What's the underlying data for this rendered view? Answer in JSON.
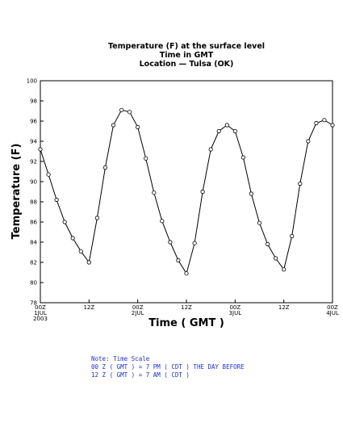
{
  "chart_data": {
    "type": "line",
    "title": [
      "Temperature (F) at the surface level",
      "Time in GMT",
      "Location — Tulsa (OK)"
    ],
    "xlabel": "Time ( GMT )",
    "ylabel": "Temperature (F)",
    "ylim": [
      78,
      100
    ],
    "yticks": [
      78,
      80,
      82,
      84,
      86,
      88,
      90,
      92,
      94,
      96,
      98,
      100
    ],
    "xlim_hours": [
      0,
      72
    ],
    "xticks": [
      {
        "hour": 0,
        "lines": [
          "00Z",
          "1JUL",
          "2003"
        ]
      },
      {
        "hour": 12,
        "lines": [
          "12Z"
        ]
      },
      {
        "hour": 24,
        "lines": [
          "00Z",
          "2JUL"
        ]
      },
      {
        "hour": 36,
        "lines": [
          "12Z"
        ]
      },
      {
        "hour": 48,
        "lines": [
          "00Z",
          "3JUL"
        ]
      },
      {
        "hour": 60,
        "lines": [
          "12Z"
        ]
      },
      {
        "hour": 72,
        "lines": [
          "00Z",
          "4JUL"
        ]
      }
    ],
    "series": [
      {
        "x_hours": [
          0,
          2,
          4,
          6,
          8,
          10,
          12,
          14,
          16,
          18,
          20,
          22,
          24,
          26,
          28,
          30,
          32,
          34,
          36,
          38,
          40,
          42,
          44,
          46,
          48,
          50,
          52,
          54,
          56,
          58,
          60,
          62,
          64,
          66,
          68,
          70,
          72
        ],
        "values": [
          93.2,
          90.7,
          88.2,
          86.0,
          84.4,
          83.1,
          82.0,
          86.4,
          91.4,
          95.6,
          97.1,
          96.9,
          95.4,
          92.3,
          88.9,
          86.1,
          84.0,
          82.2,
          80.9,
          83.9,
          89.0,
          93.2,
          95.0,
          95.6,
          95.0,
          92.4,
          88.8,
          85.9,
          83.8,
          82.4,
          81.3,
          84.6,
          89.8,
          94.0,
          95.8,
          96.1,
          95.6
        ]
      }
    ]
  },
  "note": {
    "lines": [
      "Note: Time Scale",
      "00 Z ( GMT ) = 7 PM ( CDT ) THE DAY BEFORE",
      "12 Z ( GMT ) = 7 AM ( CDT )"
    ]
  }
}
